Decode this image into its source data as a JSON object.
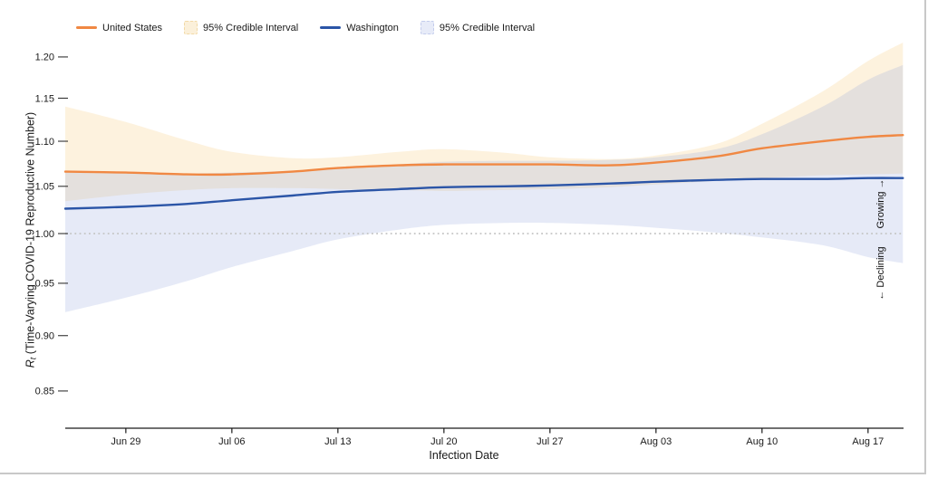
{
  "frame": {
    "border_color": "#c8c8c8",
    "background": "#ffffff"
  },
  "legend": {
    "items": [
      {
        "type": "line",
        "color": "#F08843",
        "label": "United States"
      },
      {
        "type": "band",
        "fill": "#FBF0DA",
        "border": "#F2D9A6",
        "label": "95% Credible Interval"
      },
      {
        "type": "line",
        "color": "#2B55A7",
        "label": "Washington"
      },
      {
        "type": "band",
        "fill": "#E7EBF8",
        "border": "#C3CCEC",
        "label": "95% Credible Interval"
      }
    ]
  },
  "chart_data": {
    "type": "line",
    "title": "",
    "xlabel": "Infection Date",
    "ylabel": {
      "r": "R",
      "sub": "t",
      "rest": " (Time-Varying COVID-19 Reproductive Number)"
    },
    "y_scale": "log",
    "ylim": [
      0.82,
      1.22
    ],
    "grid": "off",
    "legend_position": "top-left",
    "yticks": [
      "1.20",
      "1.15",
      "1.10",
      "1.05",
      "1.00",
      "0.95",
      "0.90",
      "0.85"
    ],
    "ytick_values": [
      1.2,
      1.15,
      1.1,
      1.05,
      1.0,
      0.95,
      0.9,
      0.85
    ],
    "xticks": [
      {
        "label": "Jun 29",
        "day": 4
      },
      {
        "label": "Jul 06",
        "day": 11
      },
      {
        "label": "Jul 13",
        "day": 18
      },
      {
        "label": "Jul 20",
        "day": 25
      },
      {
        "label": "Jul 27",
        "day": 32
      },
      {
        "label": "Aug 03",
        "day": 39
      },
      {
        "label": "Aug 10",
        "day": 46
      },
      {
        "label": "Aug 17",
        "day": 53
      }
    ],
    "x_days": [
      0,
      4,
      8,
      11,
      15,
      18,
      22,
      25,
      29,
      32,
      36,
      39,
      43,
      46,
      50,
      53,
      55.3
    ],
    "reference_line": {
      "value": 1.0,
      "style": "dotted",
      "color": "#c5c5c5"
    },
    "series": [
      {
        "name": "United States",
        "color": "#F08843",
        "band_fill": "#F5C26B",
        "band_opacity": 0.22,
        "mean": [
          1.066,
          1.065,
          1.063,
          1.063,
          1.066,
          1.07,
          1.073,
          1.074,
          1.074,
          1.074,
          1.073,
          1.076,
          1.083,
          1.092,
          1.1,
          1.105,
          1.107
        ],
        "upper": [
          1.14,
          1.122,
          1.101,
          1.088,
          1.081,
          1.082,
          1.088,
          1.091,
          1.087,
          1.082,
          1.08,
          1.084,
          1.097,
          1.12,
          1.158,
          1.195,
          1.218
        ],
        "lower": [
          1.034,
          1.041,
          1.046,
          1.048,
          1.048,
          1.047,
          1.046,
          1.045,
          1.046,
          1.047,
          1.049,
          1.052,
          1.056,
          1.059,
          1.062,
          1.063,
          1.064
        ]
      },
      {
        "name": "Washington",
        "color": "#2B55A7",
        "band_fill": "#8CA0DC",
        "band_opacity": 0.22,
        "mean": [
          1.026,
          1.028,
          1.031,
          1.035,
          1.04,
          1.044,
          1.047,
          1.049,
          1.05,
          1.051,
          1.053,
          1.055,
          1.057,
          1.058,
          1.058,
          1.059,
          1.059
        ],
        "upper": [
          1.065,
          1.064,
          1.064,
          1.065,
          1.067,
          1.07,
          1.074,
          1.077,
          1.078,
          1.078,
          1.079,
          1.082,
          1.091,
          1.108,
          1.14,
          1.172,
          1.19
        ],
        "lower": [
          0.922,
          0.936,
          0.952,
          0.966,
          0.982,
          0.994,
          1.004,
          1.009,
          1.011,
          1.011,
          1.009,
          1.006,
          1.001,
          0.996,
          0.988,
          0.976,
          0.97
        ]
      }
    ],
    "annotations": {
      "growing": "Growing →",
      "declining": "← Declining"
    }
  }
}
